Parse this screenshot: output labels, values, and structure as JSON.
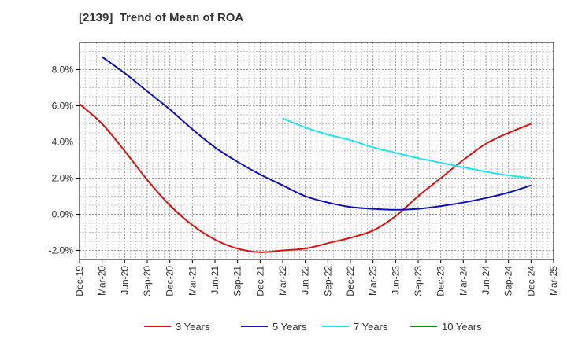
{
  "chart_data": {
    "type": "line",
    "title": "[2139]  Trend of Mean of ROA",
    "xlabel": "",
    "ylabel": "",
    "ylim": [
      -2.5,
      9.5
    ],
    "y_ticks": [
      -2.0,
      0.0,
      2.0,
      4.0,
      6.0,
      8.0
    ],
    "y_tick_labels": [
      "-2.0%",
      "0.0%",
      "2.0%",
      "4.0%",
      "6.0%",
      "8.0%"
    ],
    "x_tick_labels": [
      "Dec-19",
      "Mar-20",
      "Jun-20",
      "Sep-20",
      "Dec-20",
      "Mar-21",
      "Jun-21",
      "Sep-21",
      "Dec-21",
      "Mar-22",
      "Jun-22",
      "Sep-22",
      "Dec-22",
      "Mar-23",
      "Jun-23",
      "Sep-23",
      "Dec-23",
      "Mar-24",
      "Jun-24",
      "Sep-24",
      "Dec-24",
      "Mar-25"
    ],
    "grid": true,
    "legend_position": "bottom",
    "series": [
      {
        "name": "3 Years",
        "color": "#dd1111",
        "x": [
          "Dec-19",
          "Mar-20",
          "Jun-20",
          "Sep-20",
          "Dec-20",
          "Mar-21",
          "Jun-21",
          "Sep-21",
          "Dec-21",
          "Mar-22",
          "Jun-22",
          "Sep-22",
          "Dec-22",
          "Mar-23",
          "Jun-23",
          "Sep-23",
          "Dec-23",
          "Mar-24",
          "Jun-24",
          "Sep-24",
          "Dec-24"
        ],
        "values": [
          6.1,
          5.0,
          3.5,
          1.9,
          0.5,
          -0.6,
          -1.4,
          -1.9,
          -2.1,
          -2.0,
          -1.9,
          -1.6,
          -1.3,
          -0.9,
          -0.1,
          1.0,
          2.0,
          3.0,
          3.9,
          4.5,
          5.0
        ]
      },
      {
        "name": "5 Years",
        "color": "#1111bb",
        "x": [
          "Mar-20",
          "Jun-20",
          "Sep-20",
          "Dec-20",
          "Mar-21",
          "Jun-21",
          "Sep-21",
          "Dec-21",
          "Mar-22",
          "Jun-22",
          "Sep-22",
          "Dec-22",
          "Mar-23",
          "Jun-23",
          "Sep-23",
          "Dec-23",
          "Mar-24",
          "Jun-24",
          "Sep-24",
          "Dec-24"
        ],
        "values": [
          8.7,
          7.8,
          6.8,
          5.8,
          4.7,
          3.7,
          2.9,
          2.2,
          1.6,
          1.0,
          0.65,
          0.4,
          0.3,
          0.25,
          0.3,
          0.45,
          0.65,
          0.9,
          1.2,
          1.6
        ]
      },
      {
        "name": "7 Years",
        "color": "#22e5ee",
        "x": [
          "Mar-22",
          "Jun-22",
          "Sep-22",
          "Dec-22",
          "Mar-23",
          "Jun-23",
          "Sep-23",
          "Dec-23",
          "Mar-24",
          "Jun-24",
          "Sep-24",
          "Dec-24"
        ],
        "values": [
          5.3,
          4.8,
          4.4,
          4.1,
          3.7,
          3.4,
          3.1,
          2.85,
          2.6,
          2.35,
          2.15,
          2.0
        ]
      },
      {
        "name": "10 Years",
        "color": "#118811",
        "x": [],
        "values": []
      }
    ]
  }
}
